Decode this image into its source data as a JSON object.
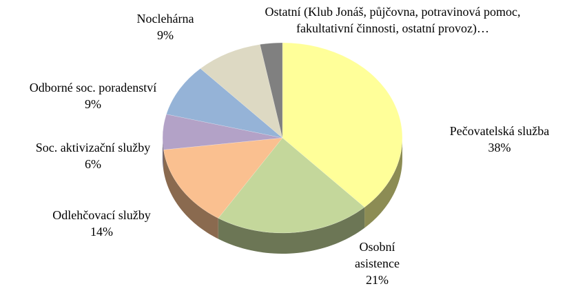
{
  "chart_data": {
    "type": "pie3d",
    "categories": [
      "Pečovatelská služba",
      "Osobní asistence",
      "Odlehčovací služby",
      "Soc. aktivizační služby",
      "Odborné soc. poradenství",
      "Noclehárna",
      "Ostatní (Klub Jonáš, půjčovna, potravinová pomoc, fakultativní činnosti, ostatní provoz)…"
    ],
    "values": [
      38,
      21,
      14,
      6,
      9,
      9,
      3
    ],
    "value_labels": [
      "38%",
      "21%",
      "14%",
      "6%",
      "9%",
      "9%",
      null
    ],
    "colors": [
      "#ffff99",
      "#c4d79b",
      "#fac090",
      "#b3a2c7",
      "#95b3d7",
      "#ddd9c3",
      "#808080"
    ]
  }
}
